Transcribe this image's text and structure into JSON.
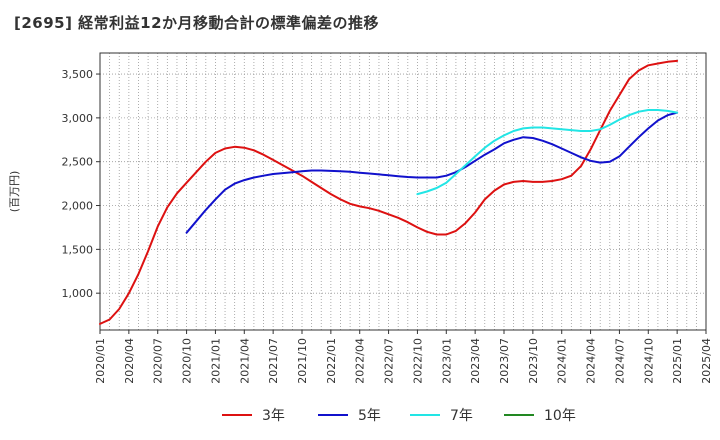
{
  "chart_data": {
    "type": "line",
    "title": "[2695]  経常利益12か月移動合計の標準偏差の推移",
    "ylabel": "(百万円)",
    "xlabel": "",
    "ylim": [
      580,
      3740
    ],
    "yticks": [
      1000,
      1500,
      2000,
      2500,
      3000,
      3500
    ],
    "ytick_labels": [
      "1,000",
      "1,500",
      "2,000",
      "2,500",
      "3,000",
      "3,500"
    ],
    "xticks": [
      "2020-01",
      "2020-04",
      "2020-07",
      "2020-10",
      "2021-01",
      "2021-04",
      "2021-07",
      "2021-10",
      "2022-01",
      "2022-04",
      "2022-07",
      "2022-10",
      "2023-01",
      "2023-04",
      "2023-07",
      "2023-10",
      "2024-01",
      "2024-04",
      "2024-07",
      "2024-10",
      "2025-01",
      "2025-04"
    ],
    "xtick_labels": [
      "2020/01",
      "2020/04",
      "2020/07",
      "2020/10",
      "2021/01",
      "2021/04",
      "2021/07",
      "2021/10",
      "2022/01",
      "2022/04",
      "2022/07",
      "2022/10",
      "2023/01",
      "2023/04",
      "2023/07",
      "2023/10",
      "2024/01",
      "2024/04",
      "2024/07",
      "2024/10",
      "2025/01",
      "2025/04"
    ],
    "grid": true,
    "legend_position": "bottom",
    "series": [
      {
        "name": "3年",
        "color": "#dd1111",
        "x": [
          "2020-01",
          "2020-02",
          "2020-03",
          "2020-04",
          "2020-05",
          "2020-06",
          "2020-07",
          "2020-08",
          "2020-09",
          "2020-10",
          "2020-11",
          "2020-12",
          "2021-01",
          "2021-02",
          "2021-03",
          "2021-04",
          "2021-05",
          "2021-06",
          "2021-07",
          "2021-08",
          "2021-09",
          "2021-10",
          "2021-11",
          "2021-12",
          "2022-01",
          "2022-02",
          "2022-03",
          "2022-04",
          "2022-05",
          "2022-06",
          "2022-07",
          "2022-08",
          "2022-09",
          "2022-10",
          "2022-11",
          "2022-12",
          "2023-01",
          "2023-02",
          "2023-03",
          "2023-04",
          "2023-05",
          "2023-06",
          "2023-07",
          "2023-08",
          "2023-09",
          "2023-10",
          "2023-11",
          "2023-12",
          "2024-01",
          "2024-02",
          "2024-03",
          "2024-04",
          "2024-05",
          "2024-06",
          "2024-07",
          "2024-08",
          "2024-09",
          "2024-10",
          "2024-11",
          "2024-12",
          "2025-01"
        ],
        "values": [
          650,
          700,
          820,
          1000,
          1220,
          1480,
          1760,
          1980,
          2140,
          2260,
          2380,
          2500,
          2600,
          2650,
          2670,
          2660,
          2630,
          2580,
          2520,
          2460,
          2400,
          2340,
          2270,
          2200,
          2130,
          2070,
          2020,
          1990,
          1970,
          1940,
          1900,
          1860,
          1810,
          1750,
          1700,
          1670,
          1670,
          1710,
          1800,
          1920,
          2070,
          2170,
          2240,
          2270,
          2280,
          2270,
          2270,
          2280,
          2300,
          2340,
          2450,
          2640,
          2860,
          3080,
          3260,
          3440,
          3540,
          3600,
          3620,
          3640,
          3650
        ]
      },
      {
        "name": "5年",
        "color": "#1111cc",
        "x": [
          "2020-10",
          "2020-11",
          "2020-12",
          "2021-01",
          "2021-02",
          "2021-03",
          "2021-04",
          "2021-05",
          "2021-06",
          "2021-07",
          "2021-08",
          "2021-09",
          "2021-10",
          "2021-11",
          "2021-12",
          "2022-01",
          "2022-02",
          "2022-03",
          "2022-04",
          "2022-05",
          "2022-06",
          "2022-07",
          "2022-08",
          "2022-09",
          "2022-10",
          "2022-11",
          "2022-12",
          "2023-01",
          "2023-02",
          "2023-03",
          "2023-04",
          "2023-05",
          "2023-06",
          "2023-07",
          "2023-08",
          "2023-09",
          "2023-10",
          "2023-11",
          "2023-12",
          "2024-01",
          "2024-02",
          "2024-03",
          "2024-04",
          "2024-05",
          "2024-06",
          "2024-07",
          "2024-08",
          "2024-09",
          "2024-10",
          "2024-11",
          "2024-12",
          "2025-01"
        ],
        "values": [
          1690,
          1820,
          1950,
          2070,
          2180,
          2250,
          2290,
          2320,
          2340,
          2360,
          2370,
          2380,
          2390,
          2400,
          2400,
          2395,
          2390,
          2385,
          2375,
          2365,
          2355,
          2345,
          2335,
          2325,
          2320,
          2320,
          2320,
          2340,
          2380,
          2440,
          2510,
          2580,
          2640,
          2710,
          2750,
          2780,
          2770,
          2740,
          2700,
          2650,
          2600,
          2550,
          2510,
          2490,
          2500,
          2560,
          2670,
          2780,
          2880,
          2970,
          3030,
          3060
        ]
      },
      {
        "name": "7年",
        "color": "#22e5e5",
        "x": [
          "2022-10",
          "2022-11",
          "2022-12",
          "2023-01",
          "2023-02",
          "2023-03",
          "2023-04",
          "2023-05",
          "2023-06",
          "2023-07",
          "2023-08",
          "2023-09",
          "2023-10",
          "2023-11",
          "2023-12",
          "2024-01",
          "2024-02",
          "2024-03",
          "2024-04",
          "2024-05",
          "2024-06",
          "2024-07",
          "2024-08",
          "2024-09",
          "2024-10",
          "2024-11",
          "2024-12",
          "2025-01"
        ],
        "values": [
          2130,
          2160,
          2200,
          2260,
          2360,
          2460,
          2560,
          2660,
          2740,
          2800,
          2850,
          2880,
          2890,
          2890,
          2880,
          2870,
          2860,
          2850,
          2850,
          2870,
          2920,
          2980,
          3030,
          3070,
          3090,
          3090,
          3080,
          3060
        ]
      },
      {
        "name": "10年",
        "color": "#228822",
        "x": [],
        "values": []
      }
    ]
  }
}
